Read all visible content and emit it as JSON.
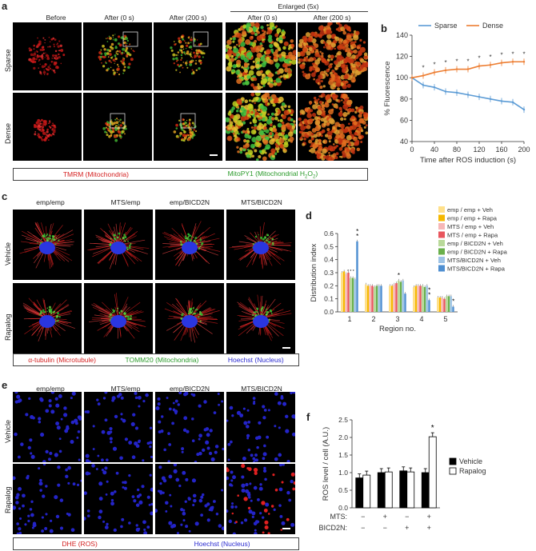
{
  "panel_a": {
    "label": "a",
    "cols": [
      "Before",
      "After (0 s)",
      "After (200 s)",
      "After (0 s)",
      "After (200 s)"
    ],
    "enlarged": "Enlarged (5x)",
    "rows": [
      "Sparse",
      "Dense"
    ],
    "legend_red": "TMRM (Mitochondria)",
    "legend_green_a": "MitoPY1 (Mitochondrial H",
    "legend_green_sub": "2",
    "legend_green_b": "O",
    "legend_green_sub2": "2",
    "legend_green_c": ")",
    "colors": {
      "red": "#d42020",
      "green": "#2a9a2a",
      "blue": "#2a2ad0"
    }
  },
  "panel_b": {
    "label": "b"
  },
  "panel_c": {
    "label": "c",
    "cols": [
      "emp/emp",
      "MTS/emp",
      "emp/BICD2N",
      "MTS/BICD2N"
    ],
    "rows": [
      "Vehicle",
      "Rapalog"
    ],
    "legend": [
      "α-tubulin (Microtubule)",
      "TOMM20 (Mitochondria)",
      "Hoechst (Nucleus)"
    ]
  },
  "panel_d": {
    "label": "d"
  },
  "panel_e": {
    "label": "e",
    "cols": [
      "emp/emp",
      "MTS/emp",
      "emp/BICD2N",
      "MTS/BICD2N"
    ],
    "rows": [
      "Vehicle",
      "Rapalog"
    ],
    "legend": [
      "DHE (ROS)",
      "Hoechst (Nucleus)"
    ]
  },
  "panel_f": {
    "label": "f"
  },
  "chart_data": [
    {
      "id": "b",
      "type": "line",
      "x": [
        0,
        20,
        40,
        60,
        80,
        100,
        120,
        140,
        160,
        180,
        200
      ],
      "series": [
        {
          "name": "Sparse",
          "color": "#5b9bd5",
          "values": [
            100,
            93,
            91,
            87,
            86,
            84,
            82,
            80,
            78,
            77,
            70
          ]
        },
        {
          "name": "Dense",
          "color": "#ed7d31",
          "values": [
            100,
            102,
            105,
            107,
            108,
            108,
            111,
            112,
            114,
            115,
            115
          ]
        }
      ],
      "significance": [
        "",
        "*",
        "*",
        "*",
        "*",
        "*",
        "*",
        "*",
        "*",
        "*",
        "*"
      ],
      "xlabel": "Time after ROS induction (s)",
      "ylabel": "% Fluorescence",
      "xlim": [
        0,
        200
      ],
      "ylim": [
        40,
        140
      ],
      "xticks": [
        0,
        40,
        80,
        120,
        160,
        200
      ],
      "yticks": [
        40,
        60,
        80,
        100,
        120,
        140
      ],
      "legend": "top"
    },
    {
      "id": "d",
      "type": "bar",
      "categories": [
        "1",
        "2",
        "3",
        "4",
        "5"
      ],
      "series": [
        {
          "name": "emp / emp  + Veh",
          "color": "#ffe08a",
          "values": [
            0.3,
            0.21,
            0.2,
            0.19,
            0.11
          ]
        },
        {
          "name": "emp / emp  + Rapa",
          "color": "#f5b800",
          "values": [
            0.31,
            0.2,
            0.2,
            0.2,
            0.11
          ]
        },
        {
          "name": "MTS / emp  + Veh",
          "color": "#f7b7b7",
          "values": [
            0.29,
            0.2,
            0.21,
            0.2,
            0.11
          ]
        },
        {
          "name": "MTS / emp  + Rapa",
          "color": "#e8565e",
          "values": [
            0.3,
            0.2,
            0.22,
            0.2,
            0.1
          ]
        },
        {
          "name": "emp / BICD2N + Veh",
          "color": "#b9d99a",
          "values": [
            0.26,
            0.19,
            0.24,
            0.2,
            0.12
          ]
        },
        {
          "name": "emp / BICD2N + Rapa",
          "color": "#6ab04c",
          "values": [
            0.26,
            0.2,
            0.23,
            0.19,
            0.12
          ]
        },
        {
          "name": "MTS/BICD2N + Veh",
          "color": "#9dc3e6",
          "values": [
            0.25,
            0.2,
            0.24,
            0.2,
            0.12
          ]
        },
        {
          "name": "MTS/BICD2N + Rapa",
          "color": "#4f8fd1",
          "values": [
            0.54,
            0.2,
            0.14,
            0.09,
            0.04
          ]
        }
      ],
      "xlabel": "Region no.",
      "ylabel": "Distribution index",
      "ylim": [
        0,
        0.6
      ],
      "yticks": [
        0,
        0.1,
        0.2,
        0.3,
        0.4,
        0.5,
        0.6
      ],
      "legend": "top-right"
    },
    {
      "id": "f",
      "type": "bar",
      "groups": [
        {
          "mts": "−",
          "bicd": "−"
        },
        {
          "mts": "+",
          "bicd": "−"
        },
        {
          "mts": "−",
          "bicd": "+"
        },
        {
          "mts": "+",
          "bicd": "+"
        }
      ],
      "series": [
        {
          "name": "Vehicle",
          "color": "#000000",
          "values": [
            0.85,
            1.0,
            1.05,
            1.0
          ]
        },
        {
          "name": "Rapalog",
          "color": "#ffffff",
          "values": [
            0.93,
            1.02,
            1.02,
            2.02
          ]
        }
      ],
      "row_labels": [
        "MTS:",
        "BICD2N:"
      ],
      "ylabel": "ROS level / cell (A.U.)",
      "ylim": [
        0,
        2.5
      ],
      "yticks": [
        0,
        0.5,
        1.0,
        1.5,
        2.0,
        2.5
      ],
      "significance": "*",
      "legend": "right"
    }
  ]
}
